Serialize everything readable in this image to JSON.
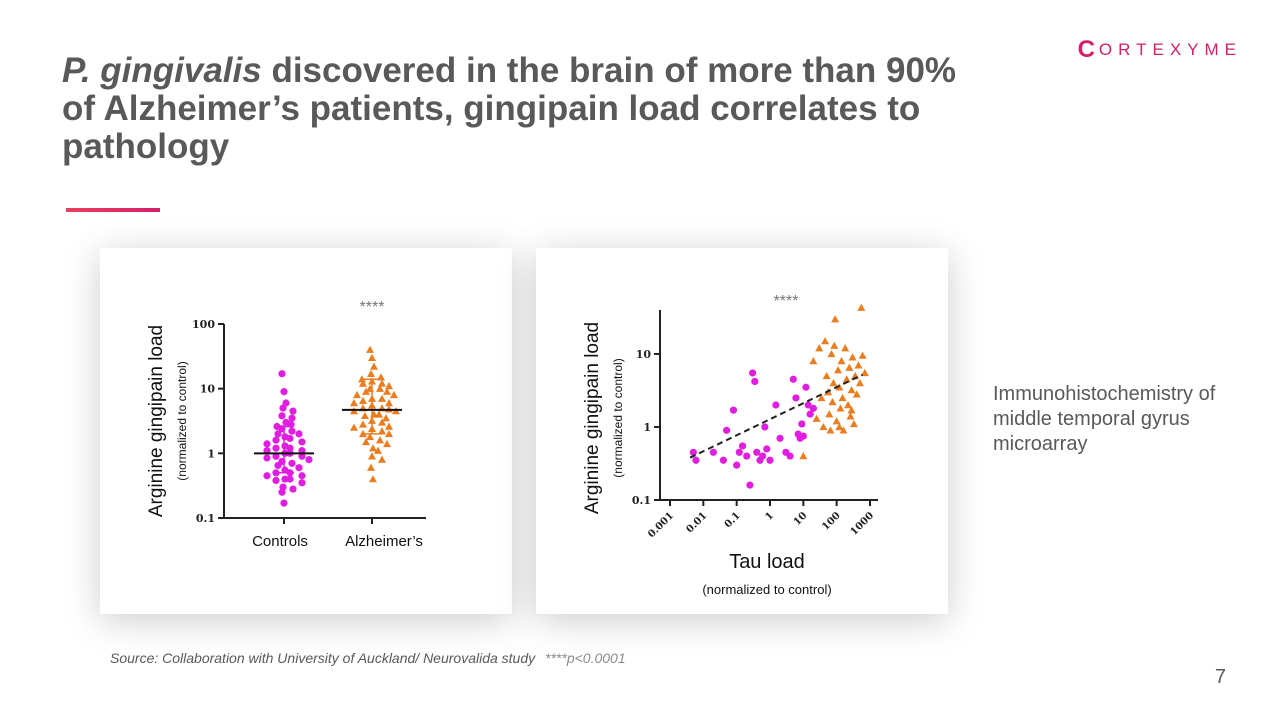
{
  "slide": {
    "title_italic": "P. gingivalis",
    "title_rest": " discovered in the brain of more than 90% of Alzheimer’s patients, gingipain load correlates to pathology",
    "logo_text": "ORTEXYME",
    "logo_mark": "C",
    "side_note": "Immunohistochemistry of middle temporal gyrus microarray",
    "source_text": "Source: Collaboration with University of Auckland/ Neurovalida study",
    "p_value_note": "****p<0.0001",
    "page_number": "7",
    "colors": {
      "accent": "#d3206b",
      "controls": "#e01ee0",
      "alzheimers": "#ea7d1f",
      "text": "#58595b"
    }
  },
  "chart_data": [
    {
      "type": "scatter",
      "subtype": "dot-plot",
      "ylabel": "Arginine gingipain load",
      "ylabel_sub": "normalized to control",
      "y_scale": "log",
      "ylim": [
        0.1,
        100
      ],
      "y_ticks": [
        "0.1",
        "1",
        "10",
        "100"
      ],
      "categories": [
        "Controls",
        "Alzheimer’s"
      ],
      "significance": "****",
      "series": [
        {
          "category": "Controls",
          "marker": "circle",
          "color": "#e01ee0",
          "median": 1.0,
          "error": [
            0.5,
            2.6
          ],
          "values": [
            17,
            9,
            6,
            5,
            4.5,
            3.8,
            3.5,
            3,
            2.8,
            2.6,
            2.4,
            2.2,
            2.0,
            2.0,
            1.8,
            1.7,
            1.6,
            1.5,
            1.4,
            1.3,
            1.2,
            1.2,
            1.1,
            1.1,
            1.0,
            1.0,
            0.9,
            0.9,
            0.85,
            0.8,
            0.75,
            0.7,
            0.65,
            0.6,
            0.55,
            0.5,
            0.5,
            0.45,
            0.45,
            0.4,
            0.4,
            0.38,
            0.35,
            0.3,
            0.28,
            0.25,
            0.17
          ]
        },
        {
          "category": "Alzheimer’s",
          "marker": "triangle",
          "color": "#ea7d1f",
          "median": 4.7,
          "error": [
            2.0,
            14
          ],
          "values": [
            40,
            30,
            22,
            17,
            15,
            14,
            13,
            12,
            12,
            11,
            10,
            10,
            9,
            9,
            8,
            8,
            7,
            7,
            6.5,
            6,
            6,
            5.5,
            5,
            5,
            4.8,
            4.5,
            4.5,
            4,
            4,
            3.8,
            3.5,
            3.2,
            3,
            2.8,
            2.6,
            2.5,
            2.4,
            2.2,
            2,
            2,
            1.8,
            1.6,
            1.5,
            1.4,
            1.2,
            1.1,
            0.9,
            0.8,
            0.6,
            0.4
          ]
        }
      ]
    },
    {
      "type": "scatter",
      "ylabel": "Arginine gingipain load",
      "ylabel_sub": "normalized to control",
      "xlabel": "Tau load",
      "xlabel_sub": "normalized to control",
      "x_scale": "log",
      "y_scale": "log",
      "xlim": [
        0.001,
        1000
      ],
      "ylim": [
        0.1,
        40
      ],
      "x_ticks": [
        "0.001",
        "0.01",
        "0.1",
        "1",
        "10",
        "100",
        "1000"
      ],
      "y_ticks": [
        "0.1",
        "1",
        "10"
      ],
      "significance": "****",
      "trendline": {
        "x": [
          0.004,
          600
        ],
        "y": [
          0.38,
          5.2
        ],
        "style": "dashed"
      },
      "series": [
        {
          "name": "",
          "marker": "circle",
          "color": "#e01ee0",
          "points": [
            {
              "x": 0.005,
              "y": 0.45
            },
            {
              "x": 0.006,
              "y": 0.35
            },
            {
              "x": 0.02,
              "y": 0.45
            },
            {
              "x": 0.04,
              "y": 0.35
            },
            {
              "x": 0.05,
              "y": 0.9
            },
            {
              "x": 0.08,
              "y": 1.7
            },
            {
              "x": 0.1,
              "y": 0.3
            },
            {
              "x": 0.12,
              "y": 0.45
            },
            {
              "x": 0.15,
              "y": 0.55
            },
            {
              "x": 0.2,
              "y": 0.4
            },
            {
              "x": 0.25,
              "y": 0.16
            },
            {
              "x": 0.3,
              "y": 5.5
            },
            {
              "x": 0.35,
              "y": 4.2
            },
            {
              "x": 0.4,
              "y": 0.45
            },
            {
              "x": 0.5,
              "y": 0.35
            },
            {
              "x": 0.6,
              "y": 0.4
            },
            {
              "x": 0.7,
              "y": 1.0
            },
            {
              "x": 0.8,
              "y": 0.5
            },
            {
              "x": 1.0,
              "y": 0.35
            },
            {
              "x": 1.5,
              "y": 2.0
            },
            {
              "x": 2,
              "y": 0.7
            },
            {
              "x": 3,
              "y": 0.45
            },
            {
              "x": 4,
              "y": 0.4
            },
            {
              "x": 5,
              "y": 4.5
            },
            {
              "x": 6,
              "y": 2.5
            },
            {
              "x": 7,
              "y": 0.8
            },
            {
              "x": 8,
              "y": 0.7
            },
            {
              "x": 9,
              "y": 1.1
            },
            {
              "x": 10,
              "y": 0.75
            },
            {
              "x": 12,
              "y": 3.5
            },
            {
              "x": 14,
              "y": 2.0
            },
            {
              "x": 16,
              "y": 1.5
            },
            {
              "x": 20,
              "y": 1.8
            }
          ]
        },
        {
          "name": "",
          "marker": "triangle",
          "color": "#ea7d1f",
          "points": [
            {
              "x": 10,
              "y": 0.4
            },
            {
              "x": 20,
              "y": 8
            },
            {
              "x": 25,
              "y": 1.3
            },
            {
              "x": 30,
              "y": 12
            },
            {
              "x": 35,
              "y": 2.5
            },
            {
              "x": 40,
              "y": 1.0
            },
            {
              "x": 45,
              "y": 15
            },
            {
              "x": 50,
              "y": 5
            },
            {
              "x": 55,
              "y": 3
            },
            {
              "x": 60,
              "y": 1.5
            },
            {
              "x": 65,
              "y": 0.9
            },
            {
              "x": 70,
              "y": 10
            },
            {
              "x": 75,
              "y": 2.2
            },
            {
              "x": 80,
              "y": 4
            },
            {
              "x": 90,
              "y": 30
            },
            {
              "x": 100,
              "y": 1.2
            },
            {
              "x": 110,
              "y": 6
            },
            {
              "x": 120,
              "y": 3.5
            },
            {
              "x": 130,
              "y": 1.8
            },
            {
              "x": 140,
              "y": 8
            },
            {
              "x": 150,
              "y": 2.5
            },
            {
              "x": 160,
              "y": 0.9
            },
            {
              "x": 180,
              "y": 12
            },
            {
              "x": 200,
              "y": 4.5
            },
            {
              "x": 220,
              "y": 2
            },
            {
              "x": 240,
              "y": 6.5
            },
            {
              "x": 260,
              "y": 1.4
            },
            {
              "x": 280,
              "y": 3.2
            },
            {
              "x": 300,
              "y": 9
            },
            {
              "x": 330,
              "y": 1.1
            },
            {
              "x": 360,
              "y": 5
            },
            {
              "x": 400,
              "y": 2.8
            },
            {
              "x": 450,
              "y": 7
            },
            {
              "x": 500,
              "y": 4
            },
            {
              "x": 550,
              "y": 43
            },
            {
              "x": 600,
              "y": 9.5
            },
            {
              "x": 700,
              "y": 5.5
            },
            {
              "x": 120,
              "y": 1.0
            },
            {
              "x": 85,
              "y": 13
            },
            {
              "x": 280,
              "y": 1.7
            }
          ]
        }
      ]
    }
  ]
}
